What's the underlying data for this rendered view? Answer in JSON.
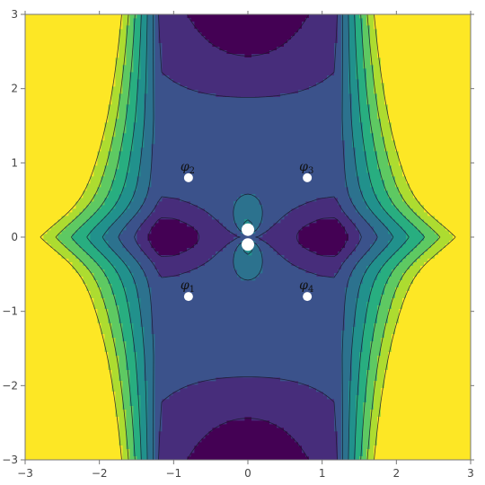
{
  "chart_data": {
    "type": "contour",
    "title": "",
    "xlabel": "",
    "ylabel": "",
    "xlim": [
      -3,
      3
    ],
    "ylim": [
      -3,
      3
    ],
    "x_ticks": [
      -3,
      -2,
      -1,
      0,
      1,
      2,
      3
    ],
    "y_ticks": [
      -3,
      -2,
      -1,
      0,
      1,
      2,
      3
    ],
    "x_tick_labels": [
      "−3",
      "−2",
      "−1",
      "0",
      "1",
      "2",
      "3"
    ],
    "y_tick_labels": [
      "−3",
      "−2",
      "−1",
      "0",
      "1",
      "2",
      "3"
    ],
    "colormap": [
      "#440154",
      "#472d7b",
      "#3b528b",
      "#2c728e",
      "#21918c",
      "#28ae80",
      "#5ec962",
      "#addc30",
      "#fde725"
    ],
    "grid": false,
    "points": [
      {
        "name": "φ1",
        "base": "φ",
        "sub": "1",
        "x": -0.8,
        "y": -0.8
      },
      {
        "name": "φ2",
        "base": "φ",
        "sub": "2",
        "x": -0.8,
        "y": 0.8
      },
      {
        "name": "φ3",
        "base": "φ",
        "sub": "3",
        "x": 0.8,
        "y": 0.8
      },
      {
        "name": "φ4",
        "base": "φ",
        "sub": "4",
        "x": 0.8,
        "y": -0.8
      }
    ],
    "singular_points": [
      {
        "x": 0,
        "y": 0.1
      },
      {
        "x": 0,
        "y": -0.1
      }
    ]
  }
}
